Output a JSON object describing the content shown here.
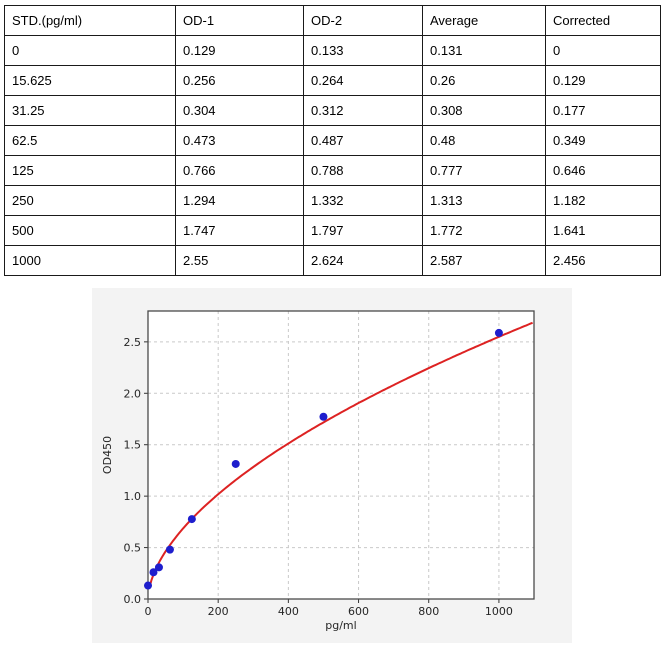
{
  "table": {
    "headers": [
      "STD.(pg/ml)",
      "OD-1",
      "OD-2",
      "Average",
      "Corrected"
    ],
    "rows": [
      [
        "0",
        "0.129",
        "0.133",
        "0.131",
        "0"
      ],
      [
        "15.625",
        "0.256",
        "0.264",
        "0.26",
        "0.129"
      ],
      [
        "31.25",
        "0.304",
        "0.312",
        "0.308",
        "0.177"
      ],
      [
        "62.5",
        "0.473",
        "0.487",
        "0.48",
        "0.349"
      ],
      [
        "125",
        "0.766",
        "0.788",
        "0.777",
        "0.646"
      ],
      [
        "250",
        "1.294",
        "1.332",
        "1.313",
        "1.182"
      ],
      [
        "500",
        "1.747",
        "1.797",
        "1.772",
        "1.641"
      ],
      [
        "1000",
        "2.55",
        "2.624",
        "2.587",
        "2.456"
      ]
    ]
  },
  "chart_data": {
    "type": "scatter",
    "title": "",
    "xlabel": "pg/ml",
    "ylabel": "OD450",
    "xlim": [
      0,
      1100
    ],
    "ylim": [
      0,
      2.8
    ],
    "x_tick_labels": [
      "0",
      "200",
      "400",
      "600",
      "800",
      "1000"
    ],
    "y_tick_labels": [
      "0.0",
      "0.5",
      "1.0",
      "1.5",
      "2.0",
      "2.5"
    ],
    "grid": true,
    "legend": "none",
    "series": [
      {
        "name": "standards",
        "marker": "circle",
        "x": [
          0,
          15.625,
          31.25,
          62.5,
          125,
          250,
          500,
          1000
        ],
        "y": [
          0.131,
          0.26,
          0.308,
          0.48,
          0.777,
          1.313,
          1.772,
          2.587
        ]
      }
    ],
    "fit_curve": {
      "name": "power-fit",
      "type": "power",
      "a": 0.0497,
      "b": 0.57,
      "x_start": 4,
      "x_end": 1100
    },
    "colors": {
      "points": "#1e1ecd",
      "curve": "#dd2222",
      "grid": "#c9c9c9",
      "panel_bg": "#f3f3f3",
      "plot_bg": "#ffffff",
      "border": "#4a4a4a",
      "tick_text": "#262626"
    }
  }
}
